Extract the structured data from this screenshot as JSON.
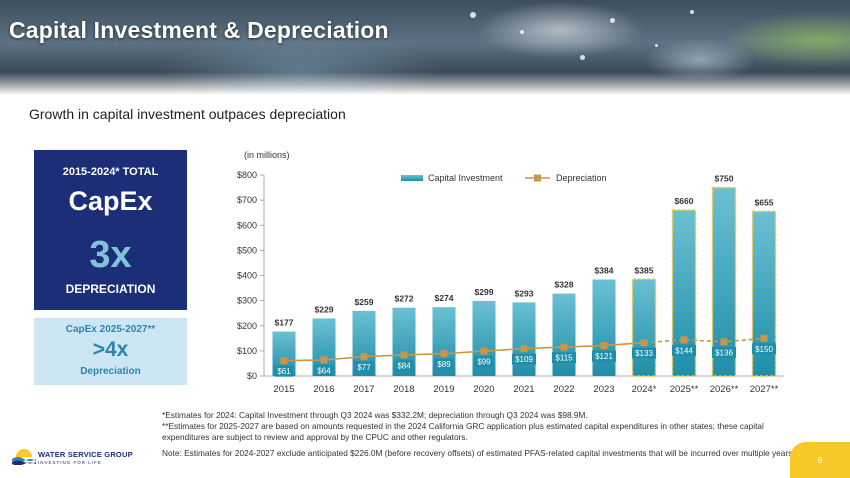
{
  "header": {
    "title": "Capital Investment & Depreciation",
    "subtitle": "Growth in capital investment outpaces depreciation"
  },
  "capex_box": {
    "label": "2015-2024* TOTAL",
    "capex": "CapEx",
    "multiple": "3x",
    "depreciation": "DEPRECIATION"
  },
  "box2": {
    "label": "CapEx 2025-2027**",
    "multiple": ">4x",
    "depreciation": "Depreciation"
  },
  "colors": {
    "navy": "#1c2e78",
    "bar_light": "#6cc0d2",
    "bar_dark": "#1f8ea8",
    "depreciation": "#c9964a",
    "estimate_outline": "#f2c230",
    "accent_yellow": "#f7c928"
  },
  "chart_data": {
    "type": "bar",
    "units_note": "(in millions)",
    "categories": [
      "2015",
      "2016",
      "2017",
      "2018",
      "2019",
      "2020",
      "2021",
      "2022",
      "2023",
      "2024*",
      "2025**",
      "2026**",
      "2027**"
    ],
    "series": [
      {
        "name": "Capital Investment",
        "kind": "bar",
        "values": [
          177,
          229,
          259,
          272,
          274,
          299,
          293,
          328,
          384,
          385,
          660,
          750,
          655
        ],
        "labels": [
          "$177",
          "$229",
          "$259",
          "$272",
          "$274",
          "$299",
          "$293",
          "$328",
          "$384",
          "$385",
          "$660",
          "$750",
          "$655"
        ]
      },
      {
        "name": "Depreciation",
        "kind": "line",
        "values": [
          61,
          64,
          77,
          84,
          89,
          99,
          109,
          115,
          121,
          133,
          144,
          136,
          150
        ],
        "labels": [
          "$61",
          "$64",
          "$77",
          "$84",
          "$89",
          "$99",
          "$109",
          "$115",
          "$121",
          "$133",
          "$144",
          "$136",
          "$150"
        ]
      }
    ],
    "estimate_start_index": 9,
    "ylim": [
      0,
      800
    ],
    "yticks": [
      0,
      100,
      200,
      300,
      400,
      500,
      600,
      700,
      800
    ],
    "ytick_labels": [
      "$0",
      "$100",
      "$200",
      "$300",
      "$400",
      "$500",
      "$600",
      "$700",
      "$800"
    ],
    "legend": [
      "Capital Investment",
      "Depreciation"
    ]
  },
  "notes": [
    "*Estimates for 2024: Capital Investment through Q3 2024 was $332.2M; depreciation through Q3 2024 was $98.9M.",
    "**Estimates for 2025-2027 are based on amounts requested in the 2024 California GRC application plus estimated capital expenditures in other states; these capital expenditures are subject to review and approval by the CPUC and other regulators.",
    "Note: Estimates for 2024-2027 exclude anticipated $226.0M (before recovery offsets) of estimated PFAS-related capital investments that will be incurred over multiple years."
  ],
  "logo": {
    "name": "WATER SERVICE GROUP",
    "tagline": "INVESTING FOR LIFE"
  },
  "page_number": "9"
}
